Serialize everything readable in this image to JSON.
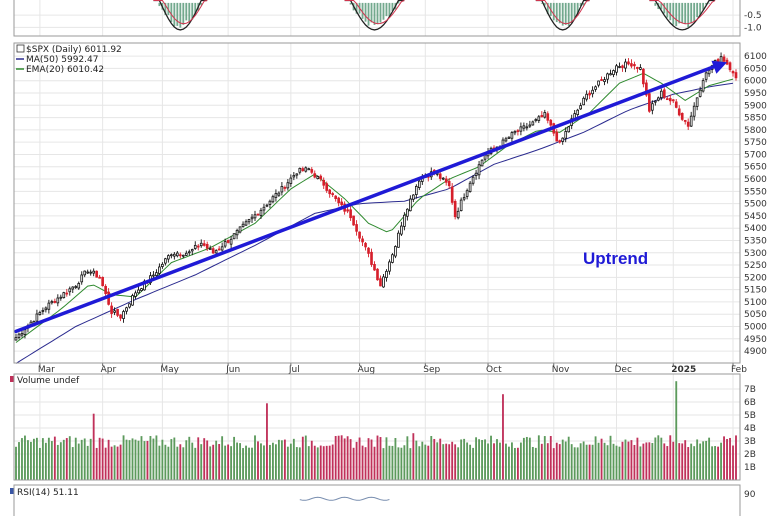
{
  "chart_data": [
    {
      "type": "bar",
      "panel": "macd-histogram",
      "ytick_labels": [
        "-0.5",
        "-1.0"
      ],
      "ylim": [
        -1.35,
        0.2
      ],
      "note": "upper indicator panel; only lower part visible"
    },
    {
      "type": "candlestick",
      "panel": "price",
      "legend": {
        "symbol": "$SPX (Daily) 6011.92",
        "ma50": "MA(50) 5992.47",
        "ema20": "EMA(20) 6010.42"
      },
      "x_labels": [
        "Mar",
        "Apr",
        "May",
        "Jun",
        "Jul",
        "Aug",
        "Sep",
        "Oct",
        "Nov",
        "Dec",
        "2025",
        "Feb"
      ],
      "x_label_index": [
        8,
        29,
        49,
        71,
        92,
        115,
        137,
        158,
        180,
        201,
        220,
        240
      ],
      "ytick_labels": [
        "6100",
        "6050",
        "6000",
        "5950",
        "5900",
        "5850",
        "5800",
        "5750",
        "5700",
        "5650",
        "5600",
        "5550",
        "5500",
        "5450",
        "5400",
        "5350",
        "5300",
        "5250",
        "5200",
        "5150",
        "5100",
        "5050",
        "5000",
        "4950",
        "4900"
      ],
      "ylim": [
        4880,
        6125
      ],
      "close_anchors": [
        [
          0,
          4955
        ],
        [
          10,
          5080
        ],
        [
          20,
          5170
        ],
        [
          24,
          5230
        ],
        [
          28,
          5200
        ],
        [
          32,
          5060
        ],
        [
          35,
          5040
        ],
        [
          40,
          5140
        ],
        [
          46,
          5210
        ],
        [
          52,
          5300
        ],
        [
          58,
          5300
        ],
        [
          62,
          5340
        ],
        [
          66,
          5300
        ],
        [
          72,
          5360
        ],
        [
          78,
          5430
        ],
        [
          84,
          5500
        ],
        [
          89,
          5560
        ],
        [
          94,
          5630
        ],
        [
          98,
          5640
        ],
        [
          103,
          5580
        ],
        [
          108,
          5500
        ],
        [
          112,
          5450
        ],
        [
          118,
          5290
        ],
        [
          122,
          5170
        ],
        [
          127,
          5330
        ],
        [
          130,
          5460
        ],
        [
          135,
          5600
        ],
        [
          140,
          5630
        ],
        [
          145,
          5570
        ],
        [
          147,
          5450
        ],
        [
          152,
          5590
        ],
        [
          157,
          5700
        ],
        [
          162,
          5740
        ],
        [
          167,
          5790
        ],
        [
          172,
          5820
        ],
        [
          177,
          5860
        ],
        [
          182,
          5740
        ],
        [
          186,
          5840
        ],
        [
          191,
          5940
        ],
        [
          196,
          6000
        ],
        [
          201,
          6060
        ],
        [
          206,
          6070
        ],
        [
          209,
          6050
        ],
        [
          212,
          5880
        ],
        [
          216,
          5950
        ],
        [
          220,
          5910
        ],
        [
          223,
          5850
        ],
        [
          225,
          5820
        ],
        [
          230,
          6010
        ],
        [
          233,
          6060
        ],
        [
          236,
          6100
        ],
        [
          240,
          6040
        ],
        [
          241,
          6012
        ]
      ],
      "ma50_anchors": [
        [
          0,
          4850
        ],
        [
          20,
          5000
        ],
        [
          40,
          5110
        ],
        [
          60,
          5210
        ],
        [
          80,
          5330
        ],
        [
          100,
          5460
        ],
        [
          115,
          5500
        ],
        [
          130,
          5510
        ],
        [
          145,
          5560
        ],
        [
          160,
          5660
        ],
        [
          175,
          5720
        ],
        [
          190,
          5790
        ],
        [
          205,
          5880
        ],
        [
          220,
          5945
        ],
        [
          232,
          5975
        ],
        [
          241,
          5992
        ]
      ],
      "ema20_anchors": [
        [
          0,
          4935
        ],
        [
          15,
          5070
        ],
        [
          25,
          5175
        ],
        [
          32,
          5130
        ],
        [
          40,
          5120
        ],
        [
          52,
          5260
        ],
        [
          65,
          5320
        ],
        [
          80,
          5420
        ],
        [
          92,
          5560
        ],
        [
          100,
          5620
        ],
        [
          110,
          5520
        ],
        [
          118,
          5420
        ],
        [
          125,
          5380
        ],
        [
          135,
          5520
        ],
        [
          145,
          5600
        ],
        [
          155,
          5650
        ],
        [
          165,
          5740
        ],
        [
          175,
          5800
        ],
        [
          182,
          5790
        ],
        [
          192,
          5870
        ],
        [
          202,
          5990
        ],
        [
          210,
          6030
        ],
        [
          216,
          5990
        ],
        [
          224,
          5920
        ],
        [
          232,
          5980
        ],
        [
          241,
          6010
        ]
      ],
      "trendline": {
        "from": [
          0,
          4980
        ],
        "to": [
          238,
          6075
        ],
        "label": "Uptrend"
      }
    },
    {
      "type": "bar",
      "panel": "volume",
      "legend": "Volume undef",
      "ytick_labels": [
        "7B",
        "6B",
        "5B",
        "4B",
        "3B",
        "2B",
        "1B"
      ],
      "ylim": [
        0,
        8
      ],
      "typical_billion": 2.9,
      "spikes": [
        {
          "index": 26,
          "value": 5.1,
          "color": "red"
        },
        {
          "index": 84,
          "value": 5.9,
          "color": "red"
        },
        {
          "index": 133,
          "value": 3.6,
          "color": "red"
        },
        {
          "index": 163,
          "value": 6.6,
          "color": "red"
        },
        {
          "index": 199,
          "value": 3.4,
          "color": "green"
        },
        {
          "index": 221,
          "value": 7.6,
          "color": "green"
        }
      ]
    },
    {
      "type": "line",
      "panel": "rsi",
      "legend": "RSI(14) 51.11",
      "ytick_labels": [
        "90"
      ],
      "ylim": [
        0,
        100
      ]
    }
  ]
}
